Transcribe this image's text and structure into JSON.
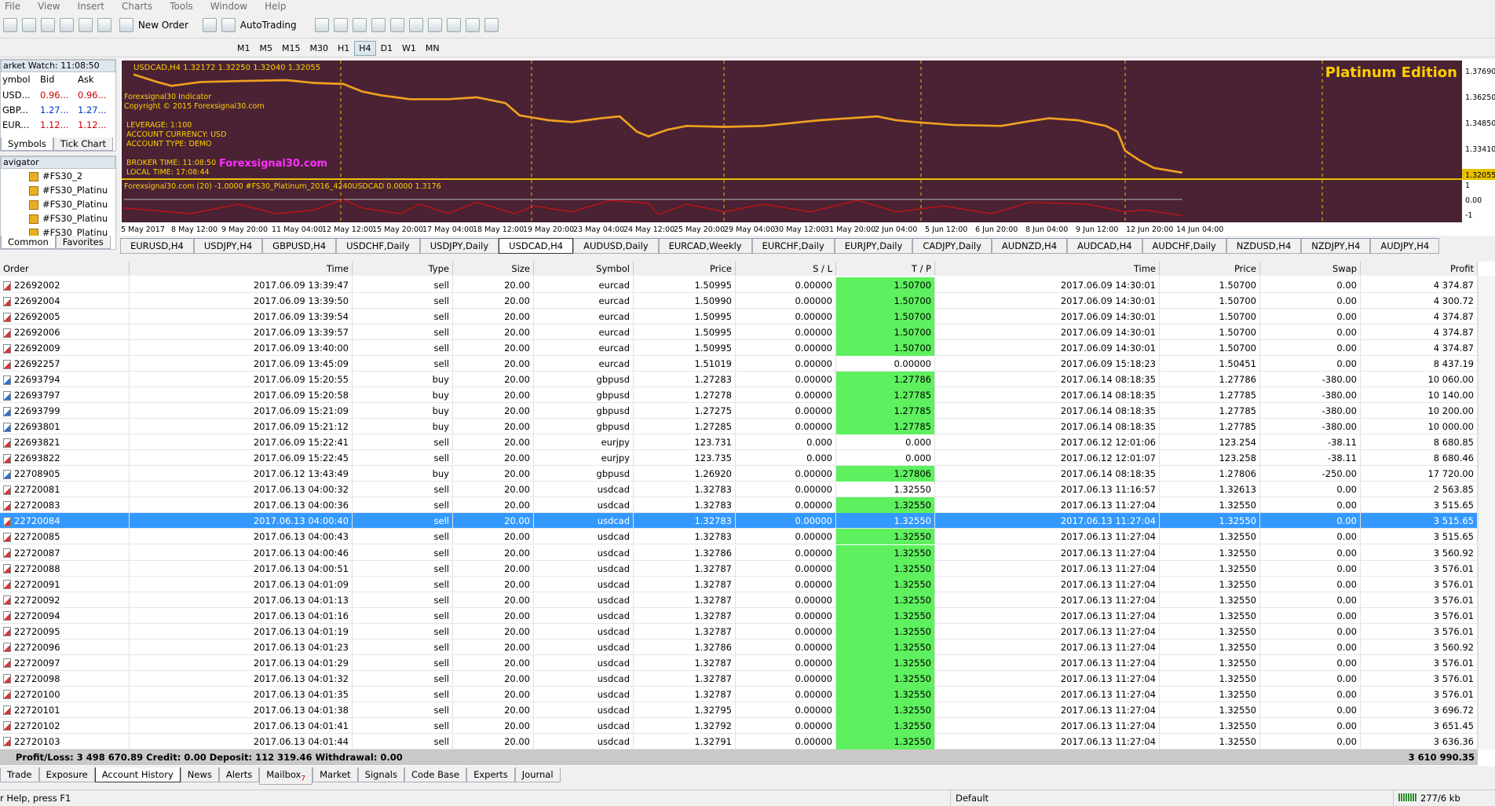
{
  "menu": [
    "File",
    "View",
    "Insert",
    "Charts",
    "Tools",
    "Window",
    "Help"
  ],
  "toolbar": {
    "new_order": "New Order",
    "auto_trading": "AutoTrading",
    "timeframes": [
      "M1",
      "M5",
      "M15",
      "M30",
      "H1",
      "H4",
      "D1",
      "W1",
      "MN"
    ],
    "active_timeframe": 5
  },
  "market_watch": {
    "title": "arket Watch: 11:08:50",
    "columns": [
      "ymbol",
      "Bid",
      "Ask"
    ],
    "rows": [
      [
        "USD...",
        "0.96...",
        "0.96..."
      ],
      [
        "GBP...",
        "1.27...",
        "1.27..."
      ],
      [
        "EUR...",
        "1.12...",
        "1.12..."
      ]
    ],
    "tabs": [
      "Symbols",
      "Tick Chart"
    ]
  },
  "navigator": {
    "title": "avigator",
    "items": [
      "#FS30_2",
      "#FS30_Platinu",
      "#FS30_Platinu",
      "#FS30_Platinu",
      "#FS30_Platinu"
    ],
    "tabs": [
      "Common",
      "Favorites"
    ]
  },
  "chart": {
    "header": "USDCAD,H4  1.32172 1.32250 1.32040 1.32055",
    "edition": "Platinum Edition",
    "indicator_name": "Forexsignal30 Indicator",
    "copyright": "Copyright © 2015 Forexsignal30.com",
    "info": [
      "LEVERAGE:  1:100",
      "ACCOUNT CURRENCY:  USD",
      "ACCOUNT TYPE:  DEMO"
    ],
    "times": [
      "BROKER TIME:  11:08:50",
      "LOCAL TIME:  17:08:44"
    ],
    "site": "Forexsignal30.com",
    "price_labels": [
      "1.37690",
      "1.36250",
      "1.34850",
      "1.33410"
    ],
    "current_price": "1.32055",
    "indicator_header": "Forexsignal30.com (20) -1.0000  #FS30_Platinum_2016_4240USDCAD 0.0000 1.3176",
    "indicator_labels": [
      "1",
      "0.00",
      "-1"
    ],
    "time_labels": [
      "5 May 2017",
      "8 May 12:00",
      "9 May 20:00",
      "11 May 04:00",
      "12 May 12:00",
      "15 May 20:00",
      "17 May 04:00",
      "18 May 12:00",
      "19 May 20:00",
      "23 May 04:00",
      "24 May 12:00",
      "25 May 20:00",
      "29 May 04:00",
      "30 May 12:00",
      "31 May 20:00",
      "2 Jun 04:00",
      "5 Jun 12:00",
      "6 Jun 20:00",
      "8 Jun 04:00",
      "9 Jun 12:00",
      "12 Jun 20:00",
      "14 Jun 04:00"
    ]
  },
  "chart_tabs": {
    "tabs": [
      "EURUSD,H4",
      "USDJPY,H4",
      "GBPUSD,H4",
      "USDCHF,Daily",
      "USDJPY,Daily",
      "USDCAD,H4",
      "AUDUSD,Daily",
      "EURCAD,Weekly",
      "EURCHF,Daily",
      "EURJPY,Daily",
      "CADJPY,Daily",
      "AUDNZD,H4",
      "AUDCAD,H4",
      "AUDCHF,Daily",
      "NZDUSD,H4",
      "NZDJPY,H4",
      "AUDJPY,H4"
    ],
    "active": 5
  },
  "table": {
    "columns": [
      "Order",
      "Time",
      "Type",
      "Size",
      "Symbol",
      "Price",
      "S / L",
      "T / P",
      "Time",
      "Price",
      "Swap",
      "Profit"
    ],
    "rows": [
      [
        "22692002",
        "2017.06.09 13:39:47",
        "sell",
        "20.00",
        "eurcad",
        "1.50995",
        "0.00000",
        "1.50700",
        "2017.06.09 14:30:01",
        "1.50700",
        "0.00",
        "4 374.87"
      ],
      [
        "22692004",
        "2017.06.09 13:39:50",
        "sell",
        "20.00",
        "eurcad",
        "1.50990",
        "0.00000",
        "1.50700",
        "2017.06.09 14:30:01",
        "1.50700",
        "0.00",
        "4 300.72"
      ],
      [
        "22692005",
        "2017.06.09 13:39:54",
        "sell",
        "20.00",
        "eurcad",
        "1.50995",
        "0.00000",
        "1.50700",
        "2017.06.09 14:30:01",
        "1.50700",
        "0.00",
        "4 374.87"
      ],
      [
        "22692006",
        "2017.06.09 13:39:57",
        "sell",
        "20.00",
        "eurcad",
        "1.50995",
        "0.00000",
        "1.50700",
        "2017.06.09 14:30:01",
        "1.50700",
        "0.00",
        "4 374.87"
      ],
      [
        "22692009",
        "2017.06.09 13:40:00",
        "sell",
        "20.00",
        "eurcad",
        "1.50995",
        "0.00000",
        "1.50700",
        "2017.06.09 14:30:01",
        "1.50700",
        "0.00",
        "4 374.87"
      ],
      [
        "22692257",
        "2017.06.09 13:45:09",
        "sell",
        "20.00",
        "eurcad",
        "1.51019",
        "0.00000",
        "0.00000",
        "2017.06.09 15:18:23",
        "1.50451",
        "0.00",
        "8 437.19"
      ],
      [
        "22693794",
        "2017.06.09 15:20:55",
        "buy",
        "20.00",
        "gbpusd",
        "1.27283",
        "0.00000",
        "1.27786",
        "2017.06.14 08:18:35",
        "1.27786",
        "-380.00",
        "10 060.00"
      ],
      [
        "22693797",
        "2017.06.09 15:20:58",
        "buy",
        "20.00",
        "gbpusd",
        "1.27278",
        "0.00000",
        "1.27785",
        "2017.06.14 08:18:35",
        "1.27785",
        "-380.00",
        "10 140.00"
      ],
      [
        "22693799",
        "2017.06.09 15:21:09",
        "buy",
        "20.00",
        "gbpusd",
        "1.27275",
        "0.00000",
        "1.27785",
        "2017.06.14 08:18:35",
        "1.27785",
        "-380.00",
        "10 200.00"
      ],
      [
        "22693801",
        "2017.06.09 15:21:12",
        "buy",
        "20.00",
        "gbpusd",
        "1.27285",
        "0.00000",
        "1.27785",
        "2017.06.14 08:18:35",
        "1.27785",
        "-380.00",
        "10 000.00"
      ],
      [
        "22693821",
        "2017.06.09 15:22:41",
        "sell",
        "20.00",
        "eurjpy",
        "123.731",
        "0.000",
        "0.000",
        "2017.06.12 12:01:06",
        "123.254",
        "-38.11",
        "8 680.85"
      ],
      [
        "22693822",
        "2017.06.09 15:22:45",
        "sell",
        "20.00",
        "eurjpy",
        "123.735",
        "0.000",
        "0.000",
        "2017.06.12 12:01:07",
        "123.258",
        "-38.11",
        "8 680.46"
      ],
      [
        "22708905",
        "2017.06.12 13:43:49",
        "buy",
        "20.00",
        "gbpusd",
        "1.26920",
        "0.00000",
        "1.27806",
        "2017.06.14 08:18:35",
        "1.27806",
        "-250.00",
        "17 720.00"
      ],
      [
        "22720081",
        "2017.06.13 04:00:32",
        "sell",
        "20.00",
        "usdcad",
        "1.32783",
        "0.00000",
        "1.32550",
        "2017.06.13 11:16:57",
        "1.32613",
        "0.00",
        "2 563.85"
      ],
      [
        "22720083",
        "2017.06.13 04:00:36",
        "sell",
        "20.00",
        "usdcad",
        "1.32783",
        "0.00000",
        "1.32550",
        "2017.06.13 11:27:04",
        "1.32550",
        "0.00",
        "3 515.65"
      ],
      [
        "22720084",
        "2017.06.13 04:00:40",
        "sell",
        "20.00",
        "usdcad",
        "1.32783",
        "0.00000",
        "1.32550",
        "2017.06.13 11:27:04",
        "1.32550",
        "0.00",
        "3 515.65"
      ],
      [
        "22720085",
        "2017.06.13 04:00:43",
        "sell",
        "20.00",
        "usdcad",
        "1.32783",
        "0.00000",
        "1.32550",
        "2017.06.13 11:27:04",
        "1.32550",
        "0.00",
        "3 515.65"
      ],
      [
        "22720087",
        "2017.06.13 04:00:46",
        "sell",
        "20.00",
        "usdcad",
        "1.32786",
        "0.00000",
        "1.32550",
        "2017.06.13 11:27:04",
        "1.32550",
        "0.00",
        "3 560.92"
      ],
      [
        "22720088",
        "2017.06.13 04:00:51",
        "sell",
        "20.00",
        "usdcad",
        "1.32787",
        "0.00000",
        "1.32550",
        "2017.06.13 11:27:04",
        "1.32550",
        "0.00",
        "3 576.01"
      ],
      [
        "22720091",
        "2017.06.13 04:01:09",
        "sell",
        "20.00",
        "usdcad",
        "1.32787",
        "0.00000",
        "1.32550",
        "2017.06.13 11:27:04",
        "1.32550",
        "0.00",
        "3 576.01"
      ],
      [
        "22720092",
        "2017.06.13 04:01:13",
        "sell",
        "20.00",
        "usdcad",
        "1.32787",
        "0.00000",
        "1.32550",
        "2017.06.13 11:27:04",
        "1.32550",
        "0.00",
        "3 576.01"
      ],
      [
        "22720094",
        "2017.06.13 04:01:16",
        "sell",
        "20.00",
        "usdcad",
        "1.32787",
        "0.00000",
        "1.32550",
        "2017.06.13 11:27:04",
        "1.32550",
        "0.00",
        "3 576.01"
      ],
      [
        "22720095",
        "2017.06.13 04:01:19",
        "sell",
        "20.00",
        "usdcad",
        "1.32787",
        "0.00000",
        "1.32550",
        "2017.06.13 11:27:04",
        "1.32550",
        "0.00",
        "3 576.01"
      ],
      [
        "22720096",
        "2017.06.13 04:01:23",
        "sell",
        "20.00",
        "usdcad",
        "1.32786",
        "0.00000",
        "1.32550",
        "2017.06.13 11:27:04",
        "1.32550",
        "0.00",
        "3 560.92"
      ],
      [
        "22720097",
        "2017.06.13 04:01:29",
        "sell",
        "20.00",
        "usdcad",
        "1.32787",
        "0.00000",
        "1.32550",
        "2017.06.13 11:27:04",
        "1.32550",
        "0.00",
        "3 576.01"
      ],
      [
        "22720098",
        "2017.06.13 04:01:32",
        "sell",
        "20.00",
        "usdcad",
        "1.32787",
        "0.00000",
        "1.32550",
        "2017.06.13 11:27:04",
        "1.32550",
        "0.00",
        "3 576.01"
      ],
      [
        "22720100",
        "2017.06.13 04:01:35",
        "sell",
        "20.00",
        "usdcad",
        "1.32787",
        "0.00000",
        "1.32550",
        "2017.06.13 11:27:04",
        "1.32550",
        "0.00",
        "3 576.01"
      ],
      [
        "22720101",
        "2017.06.13 04:01:38",
        "sell",
        "20.00",
        "usdcad",
        "1.32795",
        "0.00000",
        "1.32550",
        "2017.06.13 11:27:04",
        "1.32550",
        "0.00",
        "3 696.72"
      ],
      [
        "22720102",
        "2017.06.13 04:01:41",
        "sell",
        "20.00",
        "usdcad",
        "1.32792",
        "0.00000",
        "1.32550",
        "2017.06.13 11:27:04",
        "1.32550",
        "0.00",
        "3 651.45"
      ],
      [
        "22720103",
        "2017.06.13 04:01:44",
        "sell",
        "20.00",
        "usdcad",
        "1.32791",
        "0.00000",
        "1.32550",
        "2017.06.13 11:27:04",
        "1.32550",
        "0.00",
        "3 636.36"
      ]
    ],
    "selected": 15,
    "summary": "Profit/Loss: 3 498 670.89  Credit: 0.00  Deposit: 112 319.46  Withdrawal: 0.00",
    "total": "3 610 990.35"
  },
  "bottom_tabs": {
    "tabs": [
      "Trade",
      "Exposure",
      "Account History",
      "News",
      "Alerts",
      "Mailbox",
      "Market",
      "Signals",
      "Code Base",
      "Experts",
      "Journal"
    ],
    "active": 2,
    "mailbox_badge": "7"
  },
  "status": {
    "help": "r Help, press F1",
    "profile": "Default",
    "traffic": "277/6 kb"
  }
}
